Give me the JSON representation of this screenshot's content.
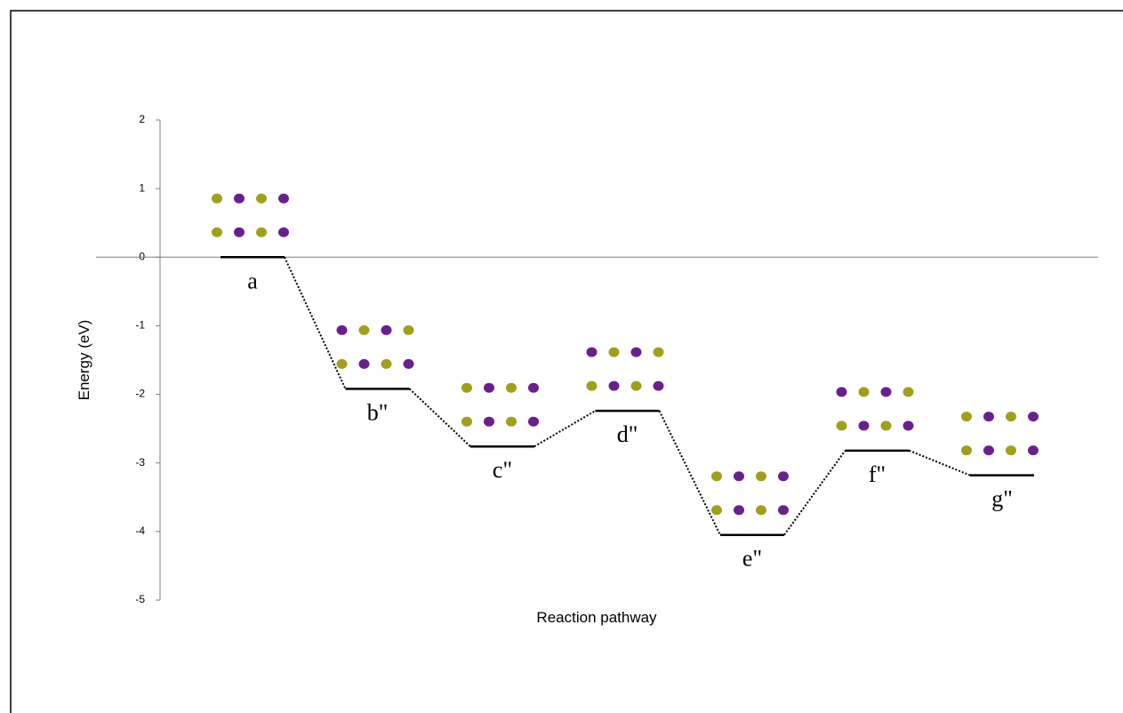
{
  "chart_data": {
    "type": "energy-profile",
    "ylabel": "Energy (eV)",
    "xlabel": "Reaction pathway",
    "categories": [
      "a",
      "b\"",
      "c\"",
      "d\"",
      "e\"",
      "f\"",
      "g\""
    ],
    "values": [
      0,
      -1.92,
      -2.76,
      -2.24,
      -4.05,
      -2.82,
      -3.18
    ],
    "color": "#000000",
    "ylim": [
      -5,
      2
    ],
    "yticks": [
      -5,
      -4,
      -3,
      -2,
      -1,
      0,
      1,
      2
    ]
  }
}
